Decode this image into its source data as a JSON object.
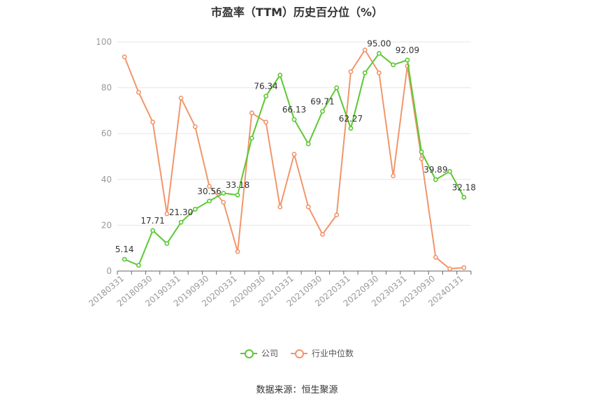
{
  "chart_data": {
    "type": "line",
    "title": "市盈率（TTM）历史百分位（%）",
    "xlabel": "",
    "ylabel": "",
    "ylim": [
      0,
      100
    ],
    "yticks": [
      0,
      20,
      40,
      60,
      80,
      100
    ],
    "grid": true,
    "legend_position": "bottom",
    "x": [
      "20180331",
      "20180630",
      "20180930",
      "20181231",
      "20190331",
      "20190630",
      "20190930",
      "20191231",
      "20200331",
      "20200630",
      "20200930",
      "20201231",
      "20210331",
      "20210630",
      "20210930",
      "20211231",
      "20220331",
      "20220630",
      "20220930",
      "20221231",
      "20230331",
      "20230630",
      "20230930",
      "20231231",
      "20240131"
    ],
    "x_tick_labels": [
      "20180331",
      "20180930",
      "20190331",
      "20190930",
      "20200331",
      "20200930",
      "20210331",
      "20210930",
      "20220331",
      "20220930",
      "20230331",
      "20230930",
      "20240131"
    ],
    "series": [
      {
        "name": "公司",
        "color": "#5cc832",
        "values": [
          5.14,
          2.5,
          17.71,
          12.0,
          21.3,
          27.0,
          30.56,
          34.0,
          33.18,
          58.0,
          76.34,
          85.5,
          66.13,
          55.5,
          69.71,
          80.0,
          62.27,
          86.5,
          95.0,
          90.0,
          92.09,
          52.0,
          39.89,
          43.5,
          32.18
        ],
        "labels": {
          "0": "5.14",
          "2": "17.71",
          "4": "21.30",
          "6": "30.56",
          "8": "33.18",
          "10": "76.34",
          "12": "66.13",
          "14": "69.71",
          "16": "62.27",
          "18": "95.00",
          "20": "92.09",
          "22": "39.89",
          "24": "32.18"
        }
      },
      {
        "name": "行业中位数",
        "color": "#f2956b",
        "values": [
          93.5,
          78.0,
          65.0,
          25.0,
          75.5,
          63.0,
          37.0,
          30.0,
          8.5,
          69.0,
          65.0,
          28.0,
          51.0,
          28.0,
          16.0,
          24.5,
          87.0,
          96.5,
          86.5,
          41.5,
          89.5,
          49.0,
          6.0,
          1.0,
          1.5
        ]
      }
    ]
  },
  "footer": {
    "source": "数据来源：恒生聚源"
  }
}
